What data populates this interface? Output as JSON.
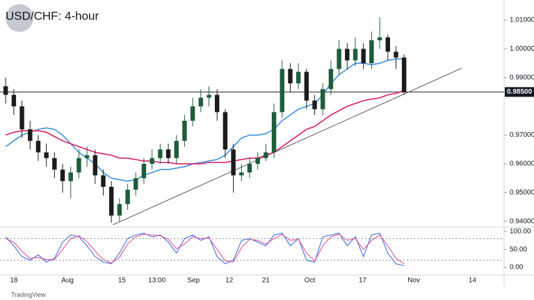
{
  "chart_data": [
    {
      "type": "candlestick",
      "title": "USD/CHF: 4-hour",
      "x": [
        0,
        1,
        2,
        3,
        4,
        5,
        6,
        7,
        8,
        9,
        10,
        11,
        12,
        13,
        14,
        15,
        16,
        17,
        18,
        19,
        20,
        21,
        22,
        23,
        24,
        25,
        26,
        27,
        28,
        29,
        30,
        31,
        32,
        33,
        34,
        35,
        36,
        37,
        38,
        39,
        40,
        41,
        42,
        43,
        44,
        45,
        46,
        47,
        48,
        49
      ],
      "open": [
        0.987,
        0.984,
        0.98,
        0.972,
        0.968,
        0.964,
        0.962,
        0.958,
        0.954,
        0.957,
        0.962,
        0.963,
        0.956,
        0.952,
        0.942,
        0.946,
        0.951,
        0.955,
        0.96,
        0.962,
        0.965,
        0.962,
        0.968,
        0.975,
        0.98,
        0.983,
        0.984,
        0.978,
        0.965,
        0.956,
        0.957,
        0.96,
        0.962,
        0.964,
        0.978,
        0.993,
        0.988,
        0.992,
        0.982,
        0.979,
        0.986,
        0.993,
        1.0,
        0.996,
        1.0,
        0.995,
        1.003,
        1.004,
        0.999,
        0.997
      ],
      "high": [
        0.99,
        0.986,
        0.982,
        0.975,
        0.97,
        0.967,
        0.964,
        0.96,
        0.959,
        0.965,
        0.966,
        0.965,
        0.958,
        0.954,
        0.948,
        0.953,
        0.957,
        0.962,
        0.965,
        0.967,
        0.967,
        0.97,
        0.977,
        0.983,
        0.986,
        0.987,
        0.986,
        0.979,
        0.967,
        0.96,
        0.962,
        0.964,
        0.967,
        0.981,
        0.996,
        0.995,
        0.995,
        0.993,
        0.984,
        0.988,
        0.996,
        1.003,
        1.002,
        1.004,
        1.002,
        1.006,
        1.011,
        1.005,
        1.001,
        0.998
      ],
      "low": [
        0.981,
        0.977,
        0.969,
        0.965,
        0.961,
        0.959,
        0.955,
        0.95,
        0.948,
        0.955,
        0.959,
        0.953,
        0.949,
        0.9395,
        0.94,
        0.944,
        0.949,
        0.953,
        0.958,
        0.96,
        0.96,
        0.96,
        0.966,
        0.973,
        0.978,
        0.98,
        0.975,
        0.962,
        0.95,
        0.954,
        0.955,
        0.958,
        0.961,
        0.962,
        0.976,
        0.985,
        0.986,
        0.979,
        0.977,
        0.977,
        0.984,
        0.991,
        0.993,
        0.994,
        0.993,
        0.993,
        1.0,
        0.996,
        0.993,
        0.984
      ],
      "close": [
        0.984,
        0.98,
        0.972,
        0.968,
        0.964,
        0.962,
        0.958,
        0.954,
        0.957,
        0.962,
        0.963,
        0.956,
        0.952,
        0.942,
        0.946,
        0.951,
        0.955,
        0.96,
        0.962,
        0.965,
        0.962,
        0.968,
        0.975,
        0.98,
        0.983,
        0.984,
        0.978,
        0.965,
        0.956,
        0.957,
        0.96,
        0.962,
        0.964,
        0.978,
        0.993,
        0.988,
        0.992,
        0.982,
        0.979,
        0.986,
        0.993,
        1.0,
        0.996,
        1.0,
        0.995,
        1.003,
        1.004,
        0.999,
        0.997,
        0.985
      ],
      "up_color": "#1e5e3a",
      "down_color": "#1c1c1c",
      "ma_lines": [
        {
          "color": "#3d8fe0",
          "values": [
            0.966,
            0.968,
            0.97,
            0.971,
            0.972,
            0.9725,
            0.972,
            0.97,
            0.967,
            0.964,
            0.962,
            0.96,
            0.957,
            0.955,
            0.9545,
            0.954,
            0.9545,
            0.956,
            0.957,
            0.958,
            0.958,
            0.9585,
            0.959,
            0.96,
            0.9605,
            0.961,
            0.9615,
            0.963,
            0.966,
            0.969,
            0.97,
            0.97,
            0.9705,
            0.972,
            0.975,
            0.977,
            0.979,
            0.98,
            0.981,
            0.984,
            0.988,
            0.991,
            0.993,
            0.995,
            0.995,
            0.9945,
            0.995,
            0.996,
            0.9965,
            0.9965
          ]
        },
        {
          "color": "#d81b60",
          "values": [
            0.97,
            0.971,
            0.9715,
            0.9715,
            0.9715,
            0.971,
            0.9695,
            0.968,
            0.967,
            0.966,
            0.965,
            0.964,
            0.9635,
            0.963,
            0.962,
            0.962,
            0.9615,
            0.961,
            0.961,
            0.9605,
            0.9605,
            0.96,
            0.96,
            0.96,
            0.96,
            0.9605,
            0.9605,
            0.9605,
            0.961,
            0.9615,
            0.962,
            0.962,
            0.963,
            0.964,
            0.966,
            0.968,
            0.97,
            0.972,
            0.973,
            0.975,
            0.977,
            0.9785,
            0.98,
            0.981,
            0.982,
            0.9825,
            0.983,
            0.984,
            0.9845,
            0.9855
          ]
        }
      ],
      "trendline": {
        "x": [
          13.2,
          56.1
        ],
        "y": [
          0.9388,
          0.9933
        ]
      },
      "hline": {
        "value": 0.985,
        "label": "0.98500"
      },
      "xlim": [
        -0.7,
        61.3
      ],
      "ylim": [
        0.938,
        1.017
      ],
      "yticks": [
        {
          "value": 0.94,
          "label": "0.94000"
        },
        {
          "value": 0.95,
          "label": "0.95000"
        },
        {
          "value": 0.96,
          "label": "0.96000"
        },
        {
          "value": 0.97,
          "label": "0.97000"
        },
        {
          "value": 0.99,
          "label": "0.99000"
        },
        {
          "value": 1.0,
          "label": "1.00000"
        },
        {
          "value": 1.01,
          "label": "1.01000"
        }
      ],
      "xticks": [
        {
          "value": 1.0,
          "label": "18"
        },
        {
          "value": 7.6,
          "label": "Aug"
        },
        {
          "value": 14.3,
          "label": "15"
        },
        {
          "value": 18.6,
          "label": "13:00"
        },
        {
          "value": 23.1,
          "label": "Sep"
        },
        {
          "value": 27.5,
          "label": "12"
        },
        {
          "value": 32.0,
          "label": "21"
        },
        {
          "value": 37.4,
          "label": "Oct"
        },
        {
          "value": 43.9,
          "label": "17"
        },
        {
          "value": 50.2,
          "label": "Nov"
        },
        {
          "value": 57.4,
          "label": "14"
        }
      ],
      "footer": "TradingView"
    },
    {
      "type": "line",
      "x": [
        0,
        1,
        2,
        3,
        4,
        5,
        6,
        7,
        8,
        9,
        10,
        11,
        12,
        13,
        14,
        15,
        16,
        17,
        18,
        19,
        20,
        21,
        22,
        23,
        24,
        25,
        26,
        27,
        28,
        29,
        30,
        31,
        32,
        33,
        34,
        35,
        36,
        37,
        38,
        39,
        40,
        41,
        42,
        43,
        44,
        45,
        46,
        47,
        48,
        49
      ],
      "xlim": [
        -0.7,
        61.3
      ],
      "series": [
        {
          "color": "#3d6fe0",
          "values": [
            85,
            60,
            30,
            20,
            35,
            15,
            25,
            70,
            90,
            85,
            60,
            30,
            15,
            10,
            40,
            80,
            90,
            95,
            85,
            90,
            70,
            40,
            80,
            90,
            75,
            85,
            30,
            10,
            20,
            75,
            80,
            70,
            60,
            90,
            95,
            60,
            80,
            20,
            15,
            85,
            90,
            95,
            60,
            85,
            30,
            90,
            95,
            40,
            10,
            5
          ]
        },
        {
          "color": "#e0529a",
          "values": [
            80,
            70,
            45,
            25,
            28,
            22,
            22,
            50,
            80,
            88,
            72,
            45,
            22,
            12,
            28,
            65,
            85,
            92,
            90,
            88,
            78,
            52,
            65,
            85,
            80,
            82,
            50,
            18,
            15,
            55,
            78,
            75,
            65,
            80,
            92,
            75,
            78,
            40,
            18,
            60,
            85,
            92,
            75,
            80,
            50,
            75,
            90,
            60,
            25,
            10
          ]
        }
      ],
      "levels": [
        80,
        20
      ],
      "ylim": [
        -21,
        110
      ],
      "yticks": [
        {
          "value": 100,
          "label": "100.00"
        },
        {
          "value": 50,
          "label": "50.00"
        },
        {
          "value": 0,
          "label": "0.00"
        }
      ]
    }
  ]
}
